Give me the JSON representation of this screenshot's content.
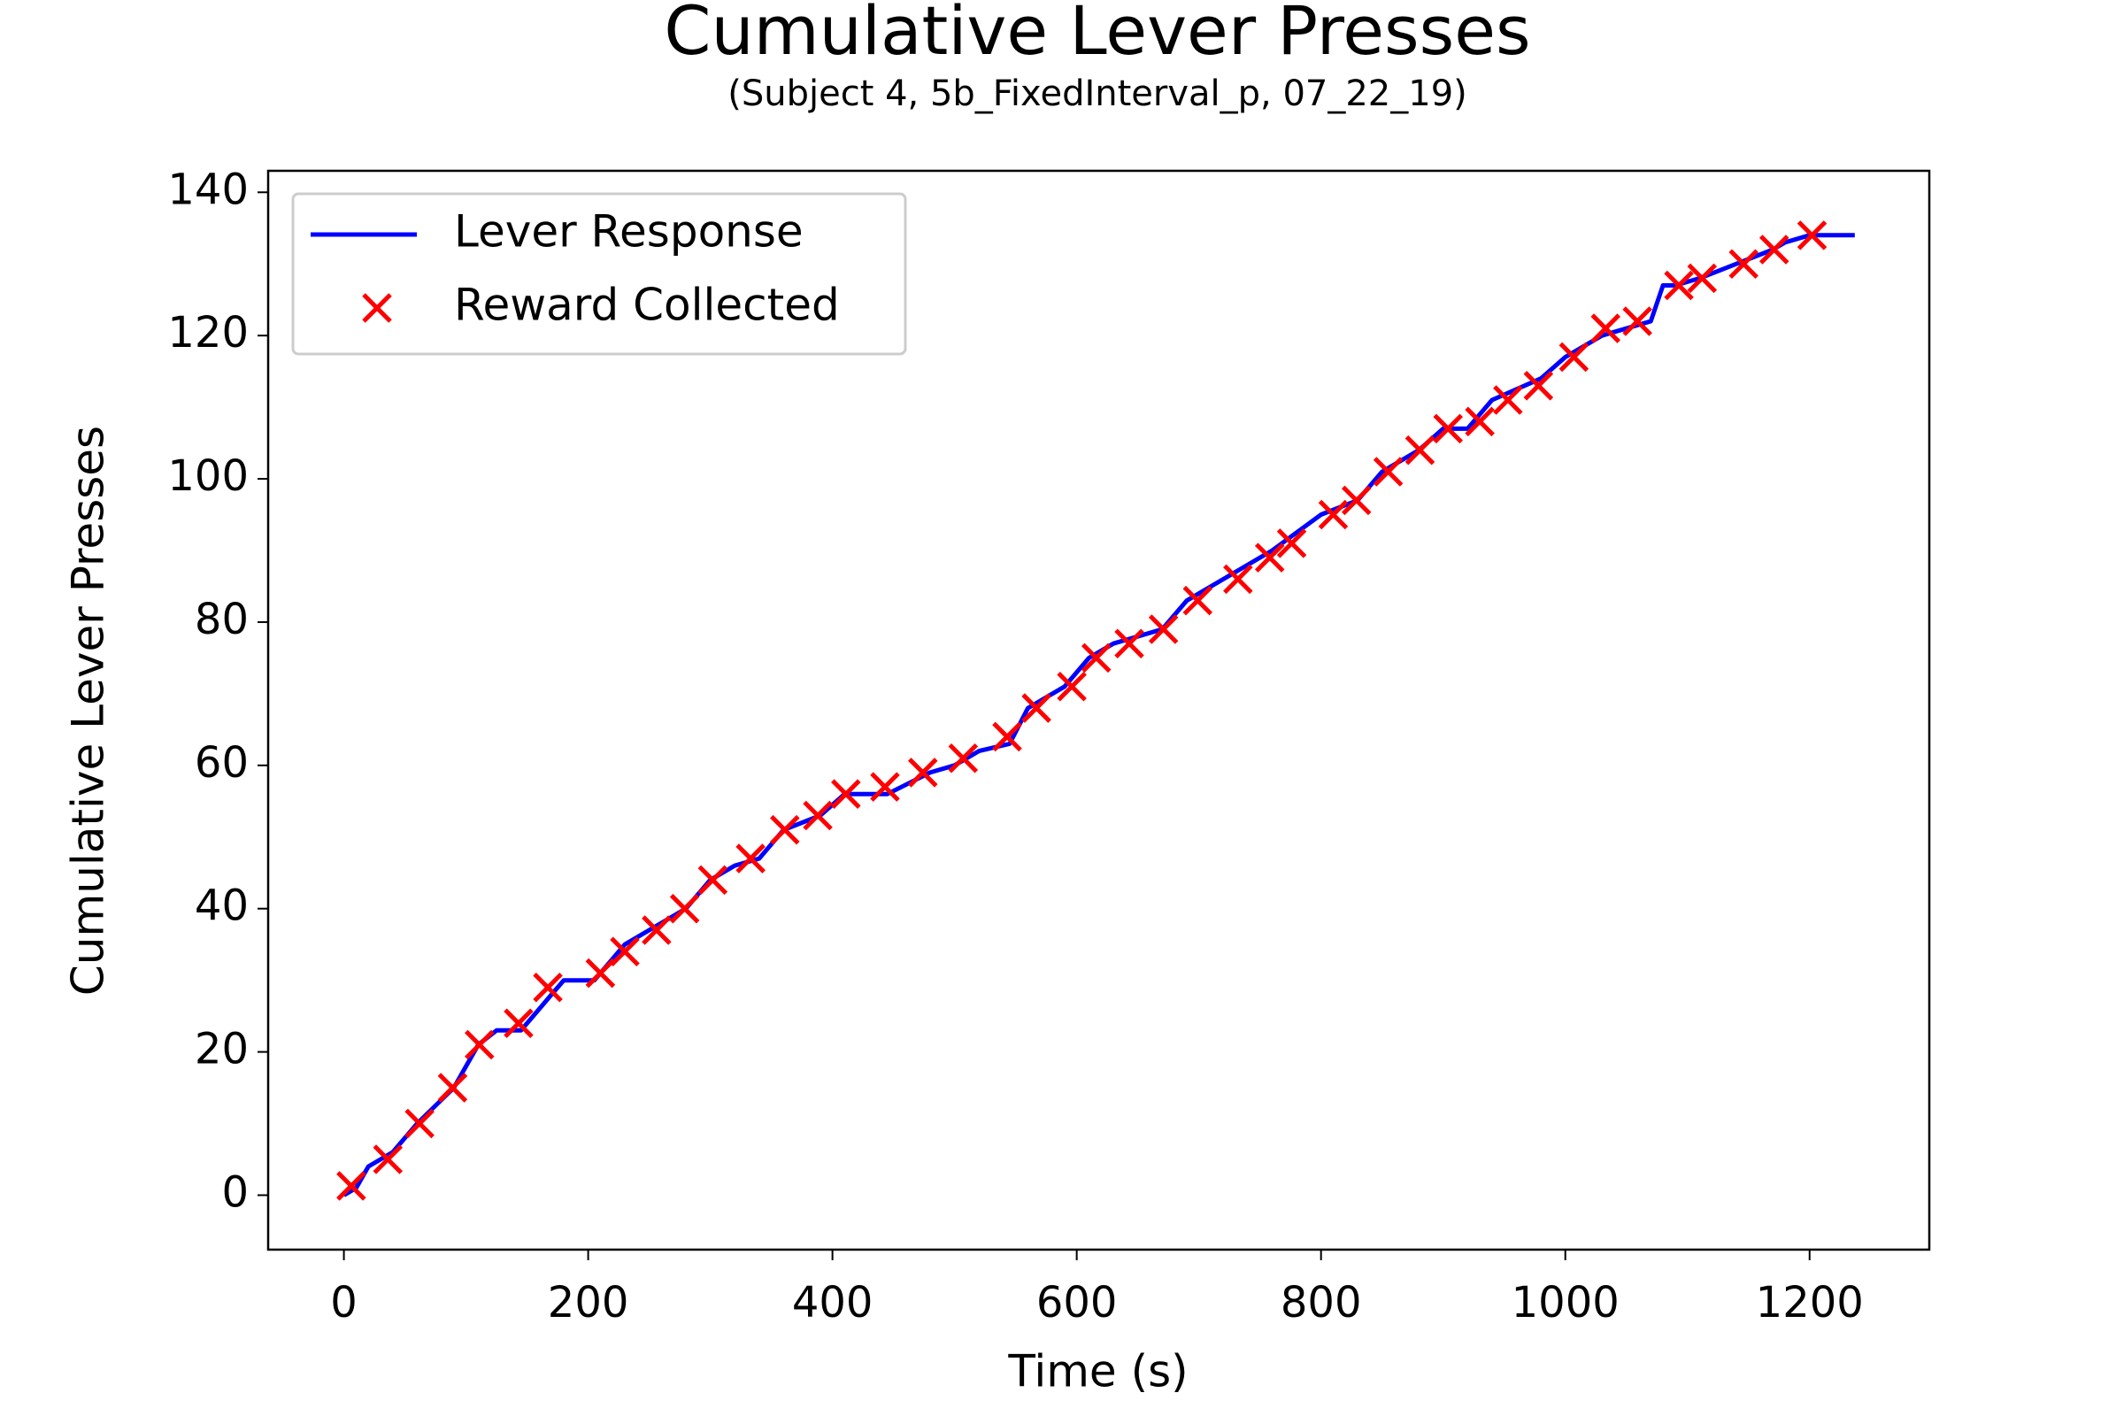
{
  "chart_data": {
    "type": "line",
    "title": "Cumulative Lever Presses",
    "subtitle": "(Subject 4, 5b_FixedInterval_p, 07_22_19)",
    "x_label": "Time (s)",
    "y_label": "Cumulative Lever Presses",
    "xlim": [
      -62,
      1298
    ],
    "ylim": [
      -7.6,
      143
    ],
    "xticks": [
      0,
      200,
      400,
      600,
      800,
      1000,
      1200
    ],
    "yticks": [
      0,
      20,
      40,
      60,
      80,
      100,
      120,
      140
    ],
    "legend": "upper left",
    "series": [
      {
        "name": "Lever Response",
        "type": "line",
        "color": "#0000ff",
        "x": [
          0,
          10,
          20,
          40,
          60,
          90,
          110,
          125,
          145,
          170,
          180,
          205,
          230,
          260,
          280,
          300,
          320,
          340,
          360,
          390,
          410,
          445,
          480,
          500,
          520,
          545,
          560,
          590,
          610,
          630,
          670,
          690,
          720,
          760,
          800,
          830,
          850,
          880,
          900,
          920,
          940,
          980,
          1000,
          1030,
          1070,
          1080,
          1090,
          1110,
          1140,
          1170,
          1180,
          1200,
          1237
        ],
        "values": [
          0,
          1,
          4,
          6,
          10,
          15,
          21,
          23,
          23,
          28,
          30,
          30,
          35,
          38,
          40,
          44,
          46,
          47,
          51,
          53,
          56,
          56,
          59,
          60,
          62,
          63,
          68,
          71,
          75,
          77,
          79,
          83,
          86,
          90,
          95,
          97,
          101,
          104,
          107,
          107,
          111,
          114,
          117,
          120,
          122,
          127,
          127,
          128,
          130,
          132,
          133,
          134,
          134
        ]
      },
      {
        "name": "Reward Collected",
        "type": "scatter",
        "color": "#ff0000",
        "x": [
          6,
          36,
          62,
          89,
          111,
          143,
          167,
          210,
          230,
          256,
          279,
          302,
          333,
          361,
          388,
          411,
          443,
          474,
          507,
          543,
          567,
          596,
          616,
          643,
          671,
          699,
          732,
          758,
          776,
          810,
          829,
          855,
          881,
          904,
          930,
          953,
          978,
          1007,
          1033,
          1059,
          1093,
          1112,
          1146,
          1171,
          1202
        ],
        "values": [
          1.3,
          5,
          10,
          15,
          21,
          24,
          29,
          31,
          34,
          37,
          40,
          44,
          47,
          51,
          53,
          56,
          57,
          59,
          61,
          64,
          68,
          71,
          75,
          77,
          79,
          83,
          86,
          89,
          91,
          95,
          97,
          101,
          104,
          107,
          108,
          111,
          113,
          117,
          121,
          122,
          127,
          128,
          130,
          132,
          134
        ]
      }
    ]
  }
}
